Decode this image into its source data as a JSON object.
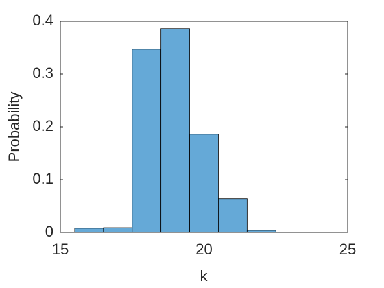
{
  "chart_data": {
    "type": "histogram",
    "bins": [
      15.5,
      16.5,
      17.5,
      18.5,
      19.5,
      20.5,
      21.5,
      22.5
    ],
    "values": [
      0.008,
      0.009,
      0.347,
      0.386,
      0.186,
      0.064,
      0.004
    ],
    "color": "#65a9d7",
    "edge_color": "#000000",
    "xlabel": "k",
    "ylabel": "Probability",
    "xlim": [
      15,
      25
    ],
    "xticks": [
      15,
      20,
      25
    ],
    "ylim": [
      0,
      0.4
    ],
    "yticks": [
      0,
      0.1,
      0.2,
      0.3,
      0.4
    ],
    "grid": false
  }
}
